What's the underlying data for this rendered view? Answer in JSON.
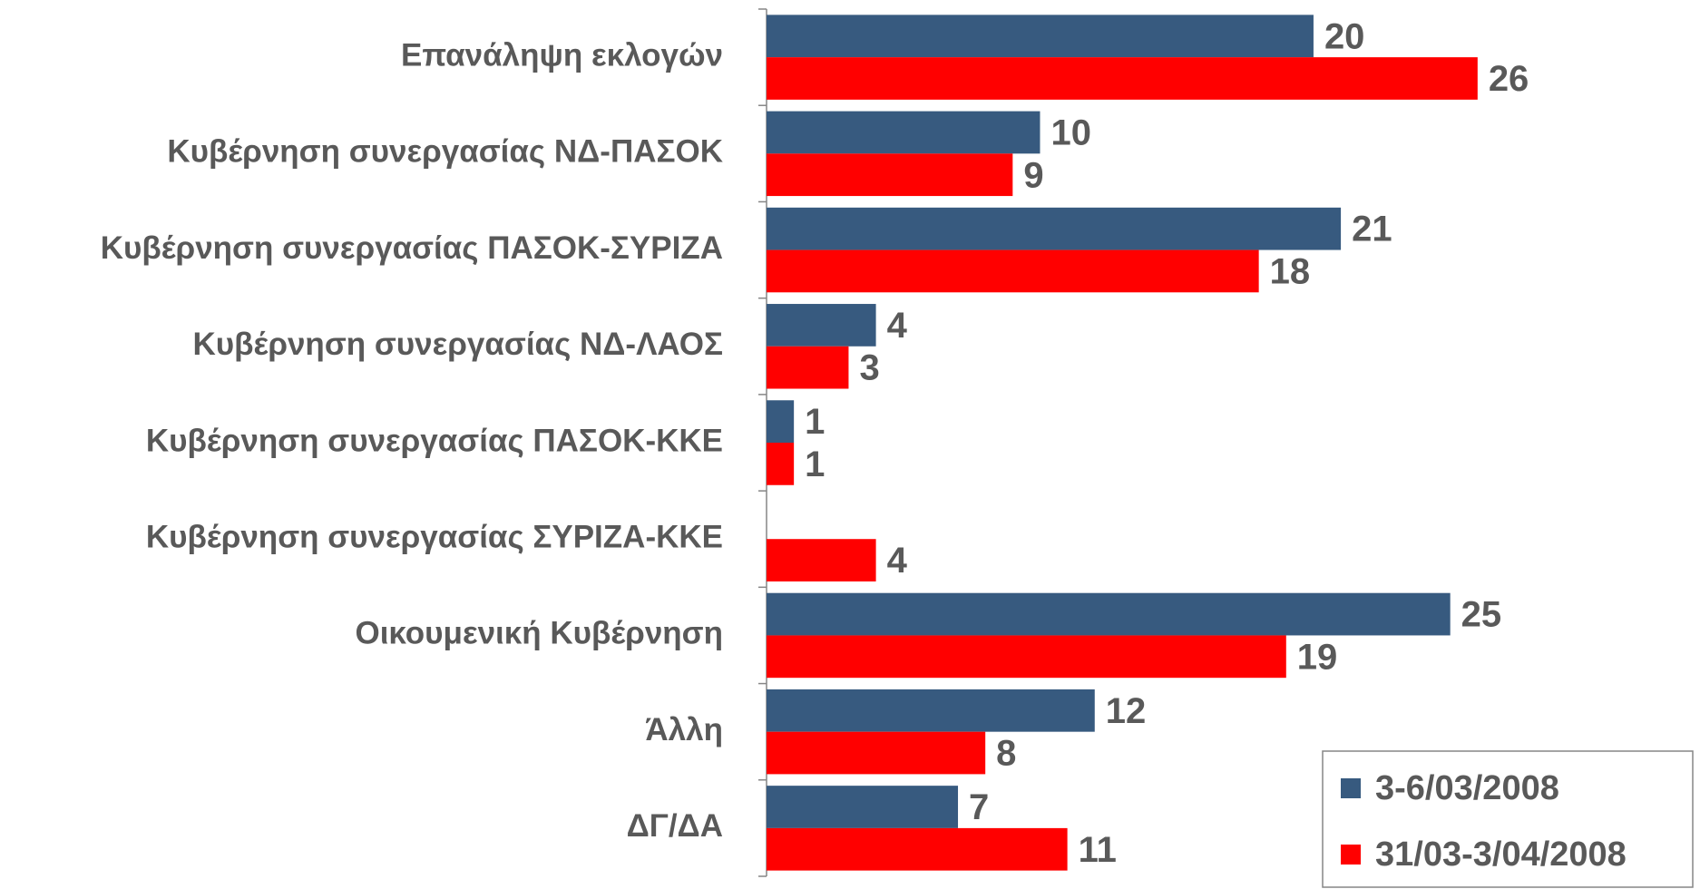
{
  "chart_data": {
    "type": "bar",
    "orientation": "horizontal",
    "categories": [
      "Επανάληψη εκλογών",
      "Κυβέρνηση συνεργασίας ΝΔ-ΠΑΣΟΚ",
      "Κυβέρνηση συνεργασίας ΠΑΣΟΚ-ΣΥΡΙΖΑ",
      "Κυβέρνηση συνεργασίας ΝΔ-ΛΑΟΣ",
      "Κυβέρνηση συνεργασίας ΠΑΣΟΚ-ΚΚΕ",
      "Κυβέρνηση συνεργασίας ΣΥΡΙΖΑ-ΚΚΕ",
      "Οικουμενική Κυβέρνηση",
      "Άλλη",
      "ΔΓ/ΔΑ"
    ],
    "series": [
      {
        "name": "3-6/03/2008",
        "color": "#375a7f",
        "values": [
          20,
          10,
          21,
          4,
          1,
          null,
          25,
          12,
          7
        ]
      },
      {
        "name": "31/03-3/04/2008",
        "color": "#ff0000",
        "values": [
          26,
          9,
          18,
          3,
          1,
          4,
          19,
          8,
          11
        ]
      }
    ],
    "xlim": [
      0,
      34
    ],
    "legend": "lower right"
  }
}
